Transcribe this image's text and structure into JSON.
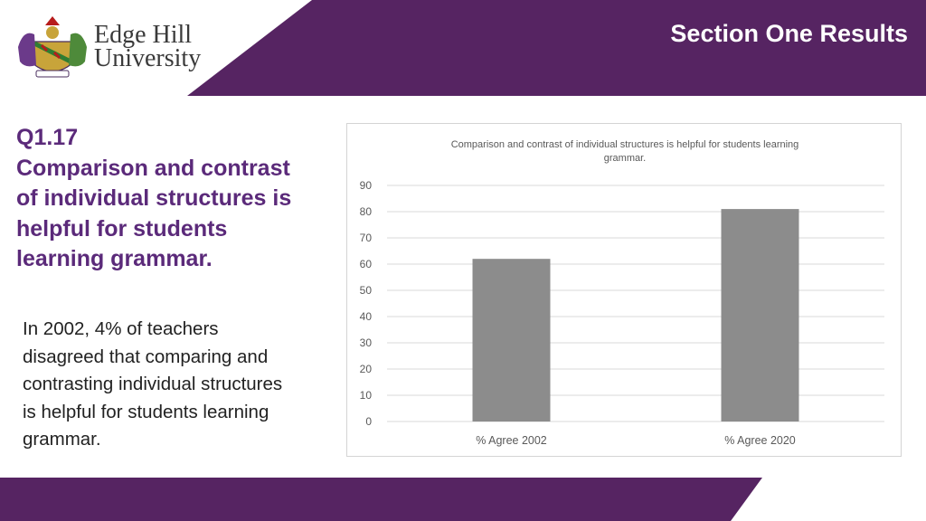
{
  "header": {
    "title": "Section One Results"
  },
  "logo": {
    "line1": "Edge Hill",
    "line2": "University"
  },
  "question": {
    "lines": [
      "Q1.17",
      "Comparison and contrast",
      "of individual structures is",
      "helpful for students",
      "learning grammar."
    ]
  },
  "body": {
    "lines": [
      "In 2002, 4% of teachers",
      "disagreed that comparing and",
      "contrasting individual structures",
      "is helpful for students learning",
      "grammar."
    ]
  },
  "colors": {
    "brand_purple": "#5b2a7a",
    "band_purple": "#562462",
    "bar_gray": "#8c8c8c"
  },
  "chart_data": {
    "type": "bar",
    "title_lines": [
      "Comparison and contrast of individual structures is helpful for students learning",
      "grammar."
    ],
    "categories": [
      "% Agree 2002",
      "% Agree 2020"
    ],
    "values": [
      62,
      81
    ],
    "xlabel": "",
    "ylabel": "",
    "ylim": [
      0,
      90
    ],
    "yticks": [
      0,
      10,
      20,
      30,
      40,
      50,
      60,
      70,
      80,
      90
    ],
    "grid": true,
    "legend": "none"
  }
}
